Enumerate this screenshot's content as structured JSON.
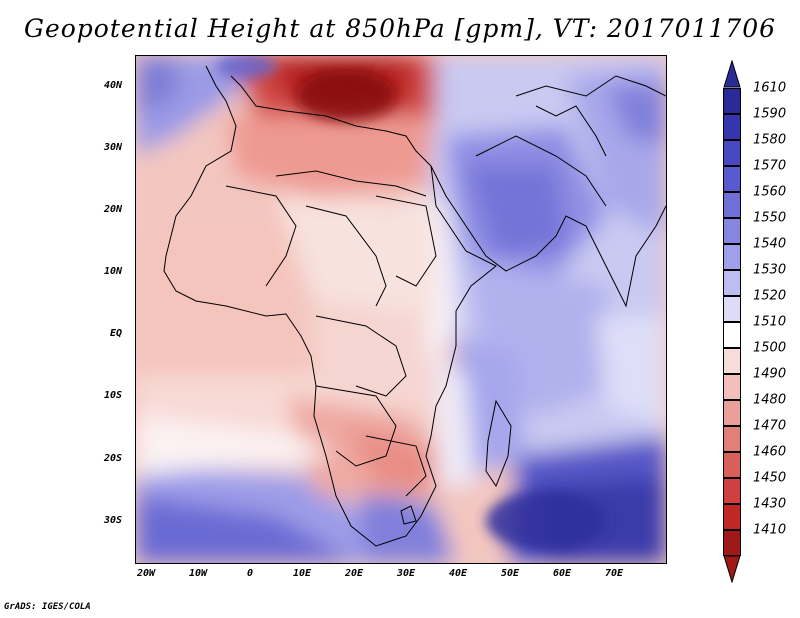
{
  "title": "Geopotential Height at 850hPa [gpm], VT: 2017011706",
  "credit": "GrADS: IGES/COLA",
  "map": {
    "lat_labels": [
      "40N",
      "30N",
      "20N",
      "10N",
      "EQ",
      "10S",
      "20S",
      "30S"
    ],
    "lon_labels": [
      "20W",
      "10W",
      "0",
      "10E",
      "20E",
      "30E",
      "40E",
      "50E",
      "60E",
      "70E"
    ]
  },
  "colorbar": {
    "labels": [
      "1610",
      "1590",
      "1580",
      "1570",
      "1560",
      "1550",
      "1540",
      "1530",
      "1520",
      "1510",
      "1500",
      "1490",
      "1480",
      "1470",
      "1460",
      "1450",
      "1430",
      "1410"
    ],
    "colors": [
      "#2b2b98",
      "#3535b0",
      "#4848c2",
      "#5a5ad0",
      "#6f6fda",
      "#8585e2",
      "#a0a0ea",
      "#bdbdf2",
      "#dcdcf8",
      "#ffffff",
      "#f8dcd8",
      "#f2c0ba",
      "#eaa098",
      "#e08078",
      "#d86058",
      "#d04040",
      "#c02828",
      "#a01818"
    ]
  }
}
